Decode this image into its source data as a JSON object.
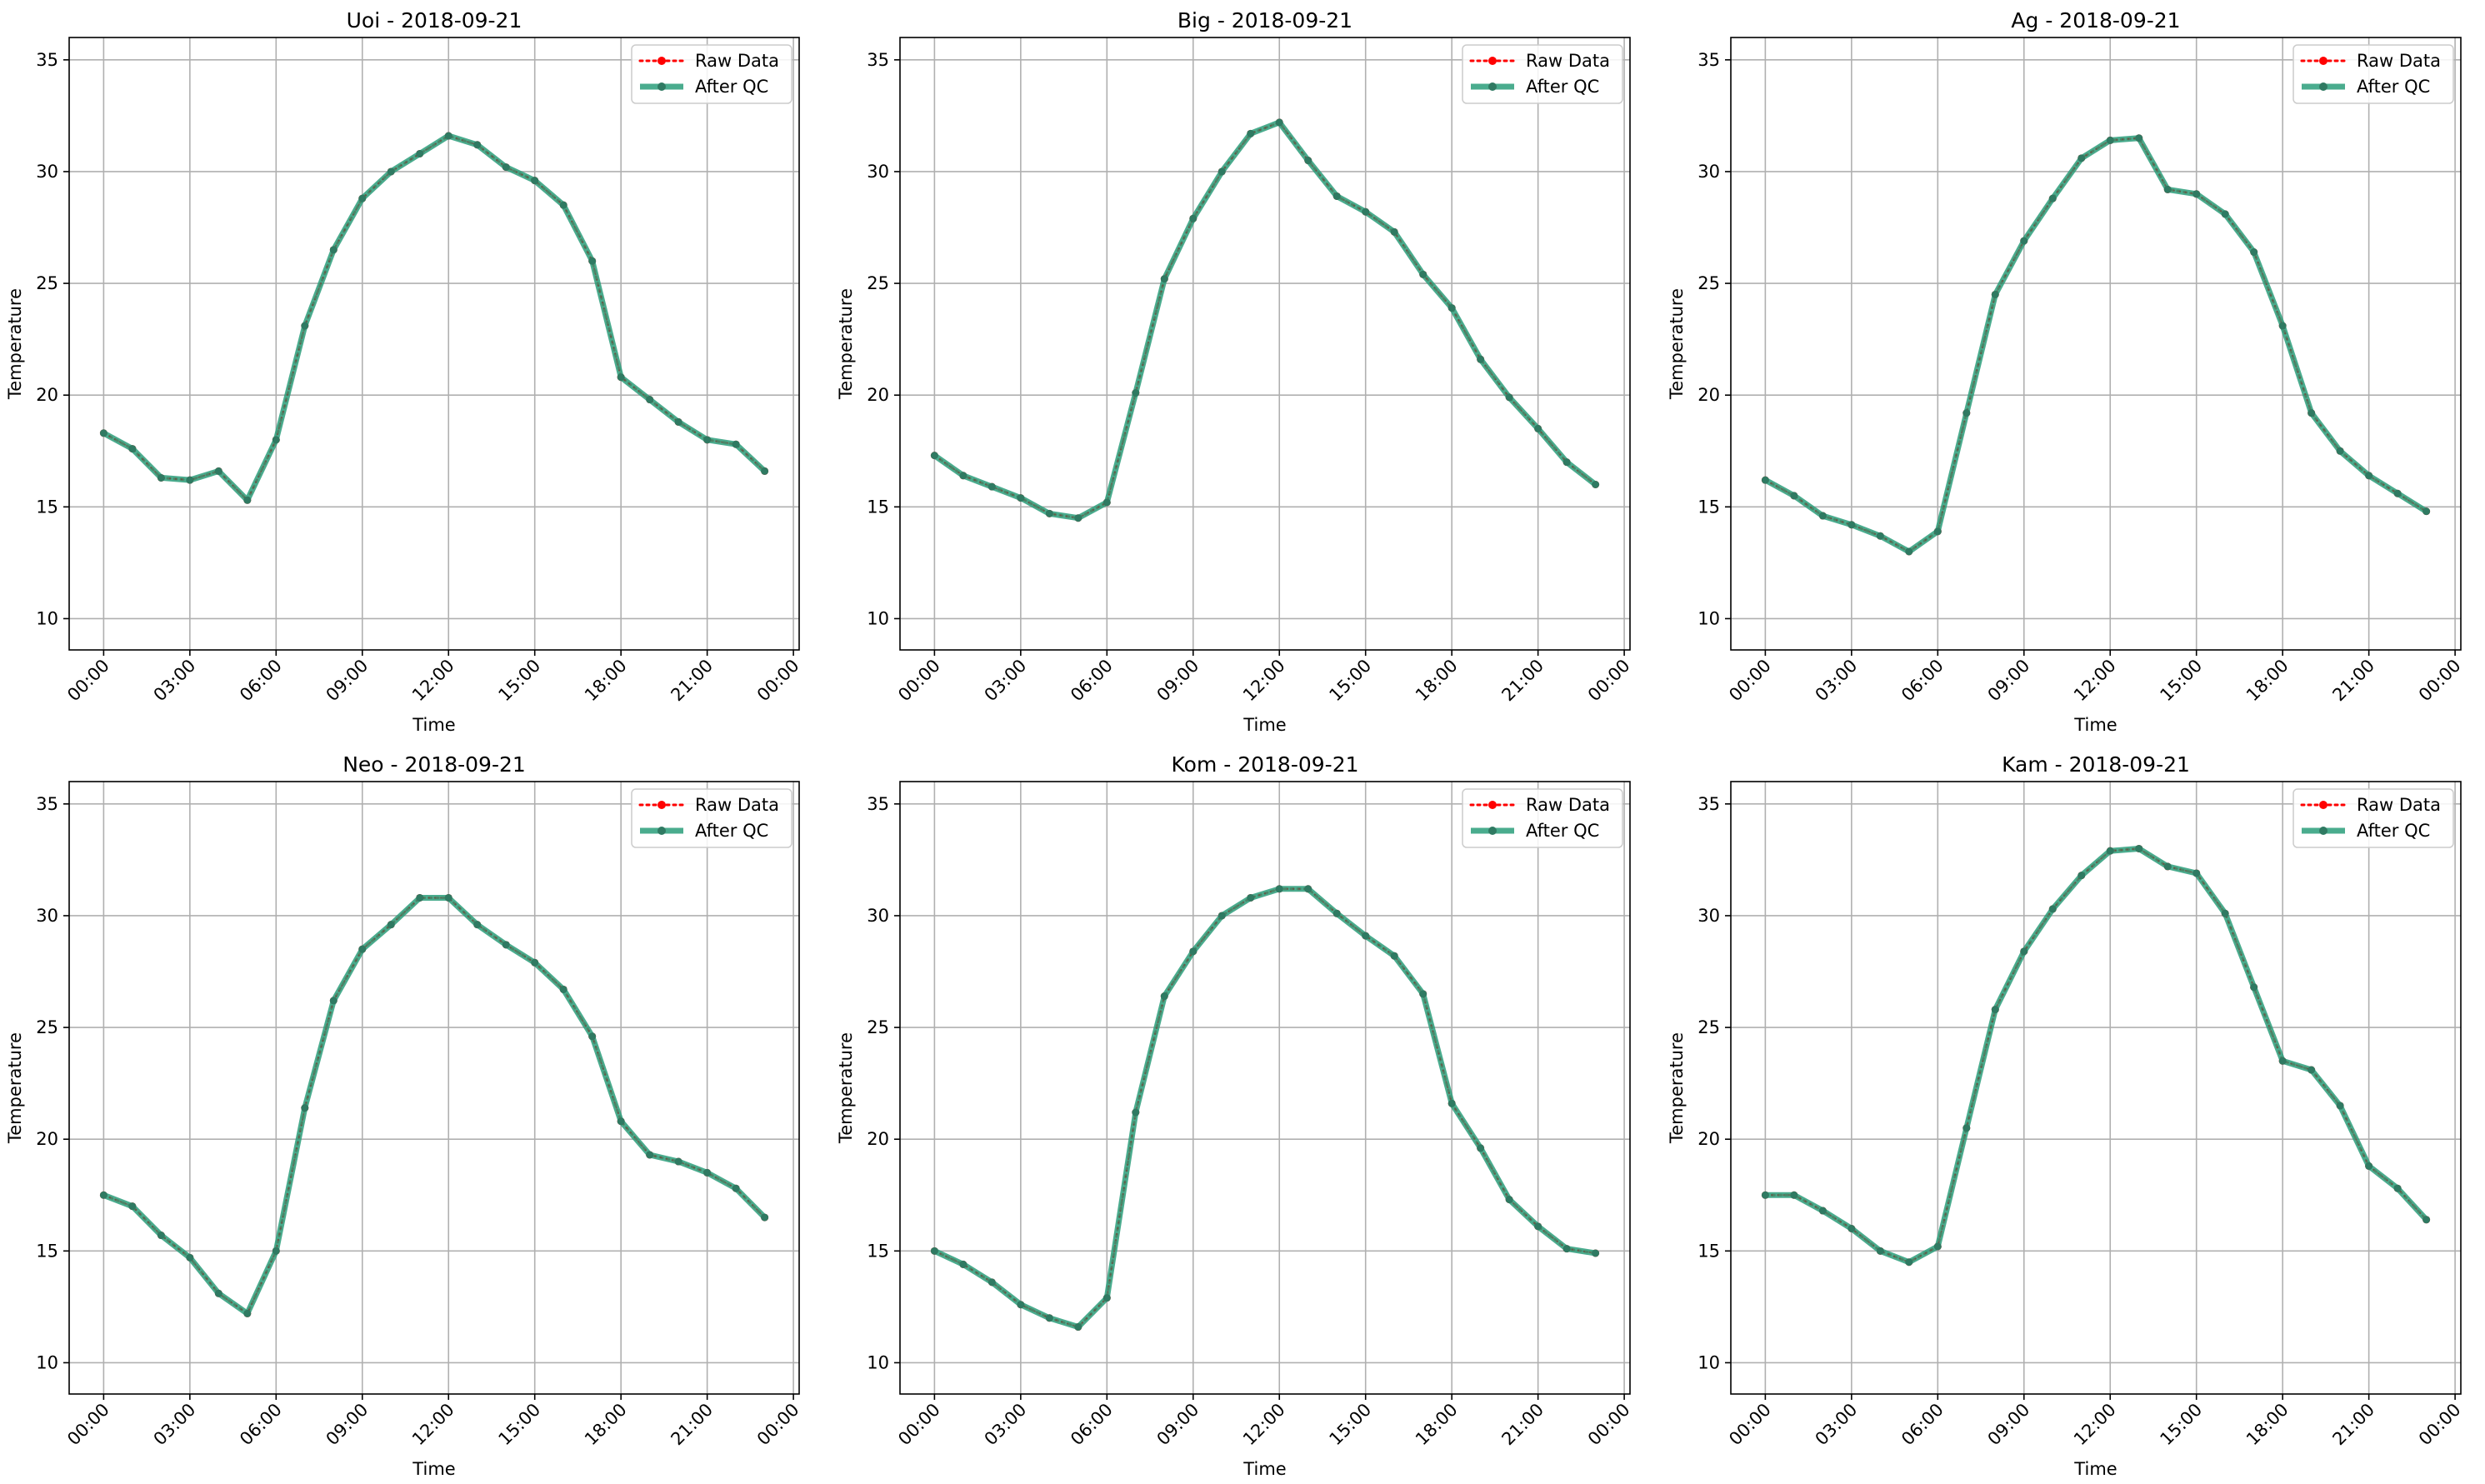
{
  "chart_data": [
    {
      "type": "line",
      "title": "Uoi - 2018-09-21",
      "xlabel": "Time",
      "ylabel": "Temperature",
      "x_unit": "hour",
      "xlim": [
        -1.2,
        24.2
      ],
      "ylim": [
        8.6,
        36.0
      ],
      "xticks": [
        0,
        3,
        6,
        9,
        12,
        15,
        18,
        21,
        24
      ],
      "xtick_labels": [
        "00:00",
        "03:00",
        "06:00",
        "09:00",
        "12:00",
        "15:00",
        "18:00",
        "21:00",
        "00:00"
      ],
      "yticks": [
        10,
        15,
        20,
        25,
        30,
        35
      ],
      "grid": true,
      "legend": "top-right",
      "x": [
        0,
        1,
        2,
        3,
        4,
        5,
        6,
        7,
        8,
        9,
        10,
        11,
        12,
        13,
        14,
        15,
        16,
        17,
        18,
        19,
        20,
        21,
        22,
        23
      ],
      "series": [
        {
          "name": "Raw Data",
          "color": "#ff0000",
          "style": "dotted-marker",
          "values": [
            18.3,
            17.6,
            16.3,
            16.2,
            16.6,
            15.3,
            18.0,
            23.1,
            26.5,
            28.8,
            30.0,
            30.8,
            31.6,
            31.2,
            30.2,
            29.6,
            28.5,
            26.0,
            20.8,
            19.8,
            18.8,
            18.0,
            17.8,
            16.6
          ]
        },
        {
          "name": "After QC",
          "color": "#2a9d7a",
          "style": "solid-marker",
          "values": [
            18.3,
            17.6,
            16.3,
            16.2,
            16.6,
            15.3,
            18.0,
            23.1,
            26.5,
            28.8,
            30.0,
            30.8,
            31.6,
            31.2,
            30.2,
            29.6,
            28.5,
            26.0,
            20.8,
            19.8,
            18.8,
            18.0,
            17.8,
            16.6
          ]
        }
      ]
    },
    {
      "type": "line",
      "title": "Big - 2018-09-21",
      "xlabel": "Time",
      "ylabel": "Temperature",
      "x_unit": "hour",
      "xlim": [
        -1.2,
        24.2
      ],
      "ylim": [
        8.6,
        36.0
      ],
      "xticks": [
        0,
        3,
        6,
        9,
        12,
        15,
        18,
        21,
        24
      ],
      "xtick_labels": [
        "00:00",
        "03:00",
        "06:00",
        "09:00",
        "12:00",
        "15:00",
        "18:00",
        "21:00",
        "00:00"
      ],
      "yticks": [
        10,
        15,
        20,
        25,
        30,
        35
      ],
      "grid": true,
      "legend": "top-right",
      "x": [
        0,
        1,
        2,
        3,
        4,
        5,
        6,
        7,
        8,
        9,
        10,
        11,
        12,
        13,
        14,
        15,
        16,
        17,
        18,
        19,
        20,
        21,
        22,
        23
      ],
      "series": [
        {
          "name": "Raw Data",
          "color": "#ff0000",
          "style": "dotted-marker",
          "values": [
            17.3,
            16.4,
            15.9,
            15.4,
            14.7,
            14.5,
            15.2,
            20.1,
            25.2,
            27.9,
            30.0,
            31.7,
            32.2,
            30.5,
            28.9,
            28.2,
            27.3,
            25.4,
            23.9,
            21.6,
            19.9,
            18.5,
            17.0,
            16.0
          ]
        },
        {
          "name": "After QC",
          "color": "#2a9d7a",
          "style": "solid-marker",
          "values": [
            17.3,
            16.4,
            15.9,
            15.4,
            14.7,
            14.5,
            15.2,
            20.1,
            25.2,
            27.9,
            30.0,
            31.7,
            32.2,
            30.5,
            28.9,
            28.2,
            27.3,
            25.4,
            23.9,
            21.6,
            19.9,
            18.5,
            17.0,
            16.0
          ]
        }
      ]
    },
    {
      "type": "line",
      "title": "Ag - 2018-09-21",
      "xlabel": "Time",
      "ylabel": "Temperature",
      "x_unit": "hour",
      "xlim": [
        -1.2,
        24.2
      ],
      "ylim": [
        8.6,
        36.0
      ],
      "xticks": [
        0,
        3,
        6,
        9,
        12,
        15,
        18,
        21,
        24
      ],
      "xtick_labels": [
        "00:00",
        "03:00",
        "06:00",
        "09:00",
        "12:00",
        "15:00",
        "18:00",
        "21:00",
        "00:00"
      ],
      "yticks": [
        10,
        15,
        20,
        25,
        30,
        35
      ],
      "grid": true,
      "legend": "top-right",
      "x": [
        0,
        1,
        2,
        3,
        4,
        5,
        6,
        7,
        8,
        9,
        10,
        11,
        12,
        13,
        14,
        15,
        16,
        17,
        18,
        19,
        20,
        21,
        22,
        23
      ],
      "series": [
        {
          "name": "Raw Data",
          "color": "#ff0000",
          "style": "dotted-marker",
          "values": [
            16.2,
            15.5,
            14.6,
            14.2,
            13.7,
            13.0,
            13.9,
            19.2,
            24.5,
            26.9,
            28.8,
            30.6,
            31.4,
            31.5,
            29.2,
            29.0,
            28.1,
            26.4,
            23.1,
            19.2,
            17.5,
            16.4,
            15.6,
            14.8
          ]
        },
        {
          "name": "After QC",
          "color": "#2a9d7a",
          "style": "solid-marker",
          "values": [
            16.2,
            15.5,
            14.6,
            14.2,
            13.7,
            13.0,
            13.9,
            19.2,
            24.5,
            26.9,
            28.8,
            30.6,
            31.4,
            31.5,
            29.2,
            29.0,
            28.1,
            26.4,
            23.1,
            19.2,
            17.5,
            16.4,
            15.6,
            14.8
          ]
        }
      ]
    },
    {
      "type": "line",
      "title": "Neo - 2018-09-21",
      "xlabel": "Time",
      "ylabel": "Temperature",
      "x_unit": "hour",
      "xlim": [
        -1.2,
        24.2
      ],
      "ylim": [
        8.6,
        36.0
      ],
      "xticks": [
        0,
        3,
        6,
        9,
        12,
        15,
        18,
        21,
        24
      ],
      "xtick_labels": [
        "00:00",
        "03:00",
        "06:00",
        "09:00",
        "12:00",
        "15:00",
        "18:00",
        "21:00",
        "00:00"
      ],
      "yticks": [
        10,
        15,
        20,
        25,
        30,
        35
      ],
      "grid": true,
      "legend": "top-right",
      "x": [
        0,
        1,
        2,
        3,
        4,
        5,
        6,
        7,
        8,
        9,
        10,
        11,
        12,
        13,
        14,
        15,
        16,
        17,
        18,
        19,
        20,
        21,
        22,
        23
      ],
      "series": [
        {
          "name": "Raw Data",
          "color": "#ff0000",
          "style": "dotted-marker",
          "values": [
            17.5,
            17.0,
            15.7,
            14.7,
            13.1,
            12.2,
            15.0,
            21.4,
            26.2,
            28.5,
            29.6,
            30.8,
            30.8,
            29.6,
            28.7,
            27.9,
            26.7,
            24.6,
            20.8,
            19.3,
            19.0,
            18.5,
            17.8,
            16.5
          ]
        },
        {
          "name": "After QC",
          "color": "#2a9d7a",
          "style": "solid-marker",
          "values": [
            17.5,
            17.0,
            15.7,
            14.7,
            13.1,
            12.2,
            15.0,
            21.4,
            26.2,
            28.5,
            29.6,
            30.8,
            30.8,
            29.6,
            28.7,
            27.9,
            26.7,
            24.6,
            20.8,
            19.3,
            19.0,
            18.5,
            17.8,
            16.5
          ]
        }
      ]
    },
    {
      "type": "line",
      "title": "Kom - 2018-09-21",
      "xlabel": "Time",
      "ylabel": "Temperature",
      "x_unit": "hour",
      "xlim": [
        -1.2,
        24.2
      ],
      "ylim": [
        8.6,
        36.0
      ],
      "xticks": [
        0,
        3,
        6,
        9,
        12,
        15,
        18,
        21,
        24
      ],
      "xtick_labels": [
        "00:00",
        "03:00",
        "06:00",
        "09:00",
        "12:00",
        "15:00",
        "18:00",
        "21:00",
        "00:00"
      ],
      "yticks": [
        10,
        15,
        20,
        25,
        30,
        35
      ],
      "grid": true,
      "legend": "top-right",
      "x": [
        0,
        1,
        2,
        3,
        4,
        5,
        6,
        7,
        8,
        9,
        10,
        11,
        12,
        13,
        14,
        15,
        16,
        17,
        18,
        19,
        20,
        21,
        22,
        23
      ],
      "series": [
        {
          "name": "Raw Data",
          "color": "#ff0000",
          "style": "dotted-marker",
          "values": [
            15.0,
            14.4,
            13.6,
            12.6,
            12.0,
            11.6,
            12.9,
            21.2,
            26.4,
            28.4,
            30.0,
            30.8,
            31.2,
            31.2,
            30.1,
            29.1,
            28.2,
            26.5,
            21.6,
            19.6,
            17.3,
            16.1,
            15.1,
            14.9
          ]
        },
        {
          "name": "After QC",
          "color": "#2a9d7a",
          "style": "solid-marker",
          "values": [
            15.0,
            14.4,
            13.6,
            12.6,
            12.0,
            11.6,
            12.9,
            21.2,
            26.4,
            28.4,
            30.0,
            30.8,
            31.2,
            31.2,
            30.1,
            29.1,
            28.2,
            26.5,
            21.6,
            19.6,
            17.3,
            16.1,
            15.1,
            14.9
          ]
        }
      ]
    },
    {
      "type": "line",
      "title": "Kam - 2018-09-21",
      "xlabel": "Time",
      "ylabel": "Temperature",
      "x_unit": "hour",
      "xlim": [
        -1.2,
        24.2
      ],
      "ylim": [
        8.6,
        36.0
      ],
      "xticks": [
        0,
        3,
        6,
        9,
        12,
        15,
        18,
        21,
        24
      ],
      "xtick_labels": [
        "00:00",
        "03:00",
        "06:00",
        "09:00",
        "12:00",
        "15:00",
        "18:00",
        "21:00",
        "00:00"
      ],
      "yticks": [
        10,
        15,
        20,
        25,
        30,
        35
      ],
      "grid": true,
      "legend": "top-right",
      "x": [
        0,
        1,
        2,
        3,
        4,
        5,
        6,
        7,
        8,
        9,
        10,
        11,
        12,
        13,
        14,
        15,
        16,
        17,
        18,
        19,
        20,
        21,
        22,
        23
      ],
      "series": [
        {
          "name": "Raw Data",
          "color": "#ff0000",
          "style": "dotted-marker",
          "values": [
            17.5,
            17.5,
            16.8,
            16.0,
            15.0,
            14.5,
            15.2,
            20.5,
            25.8,
            28.4,
            30.3,
            31.8,
            32.9,
            33.0,
            32.2,
            31.9,
            30.1,
            26.8,
            23.5,
            23.1,
            21.5,
            18.8,
            17.8,
            16.4
          ]
        },
        {
          "name": "After QC",
          "color": "#2a9d7a",
          "style": "solid-marker",
          "values": [
            17.5,
            17.5,
            16.8,
            16.0,
            15.0,
            14.5,
            15.2,
            20.5,
            25.8,
            28.4,
            30.3,
            31.8,
            32.9,
            33.0,
            32.2,
            31.9,
            30.1,
            26.8,
            23.5,
            23.1,
            21.5,
            18.8,
            17.8,
            16.4
          ]
        }
      ]
    }
  ]
}
